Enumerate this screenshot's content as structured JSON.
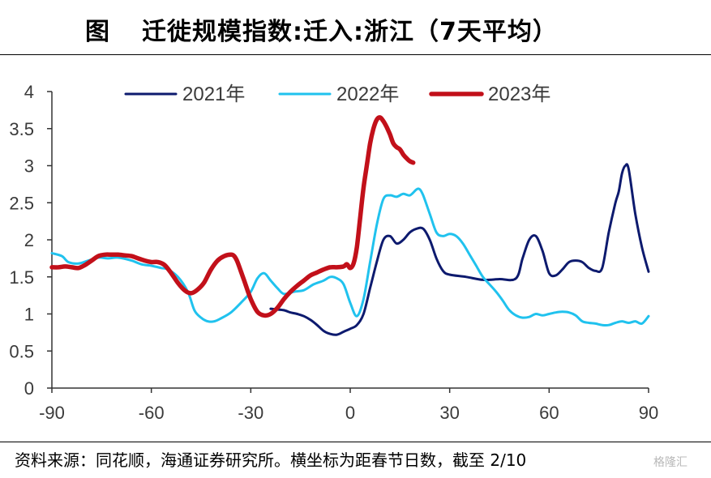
{
  "header": {
    "prefix": "图",
    "title": "迁徙规模指数:迁入:浙江（7天平均）"
  },
  "source": "资料来源：同花顺，海通证券研究所。横坐标为距春节日数，截至 2/10",
  "watermark": "格隆汇",
  "chart_data": {
    "type": "line",
    "title": "迁徙规模指数:迁入:浙江（7天平均）",
    "xlabel": "",
    "ylabel": "",
    "xlim": [
      -90,
      90
    ],
    "ylim": [
      0,
      4
    ],
    "x_ticks": [
      -90,
      -60,
      -30,
      0,
      30,
      60,
      90
    ],
    "x_tick_labels": [
      "-90",
      "-60",
      "-30",
      "0",
      "30",
      "60",
      "90"
    ],
    "y_ticks": [
      0,
      0.5,
      1,
      1.5,
      2,
      2.5,
      3,
      3.5,
      4
    ],
    "y_tick_labels": [
      "0",
      "0.5",
      "1",
      "1.5",
      "2",
      "2.5",
      "3",
      "3.5",
      "4"
    ],
    "grid": false,
    "legend_position": "top",
    "series": [
      {
        "name": "2021年",
        "color": "#0d1a6e",
        "x": [
          -24,
          -22,
          -20,
          -18,
          -16,
          -14,
          -12,
          -10,
          -8,
          -6,
          -4,
          -2,
          0,
          2,
          4,
          6,
          8,
          10,
          12,
          14,
          16,
          18,
          20,
          22,
          24,
          26,
          28,
          30,
          35,
          40,
          45,
          50,
          52,
          54,
          56,
          58,
          60,
          62,
          64,
          66,
          68,
          70,
          72,
          74,
          76,
          78,
          80,
          81,
          82,
          83,
          84,
          86,
          88,
          90
        ],
        "y": [
          1.07,
          1.06,
          1.05,
          1.02,
          1.0,
          0.97,
          0.92,
          0.85,
          0.77,
          0.73,
          0.72,
          0.76,
          0.8,
          0.85,
          1.0,
          1.35,
          1.7,
          2.0,
          2.05,
          1.95,
          2.0,
          2.1,
          2.15,
          2.15,
          2.0,
          1.75,
          1.58,
          1.53,
          1.5,
          1.46,
          1.47,
          1.48,
          1.75,
          2.0,
          2.05,
          1.85,
          1.55,
          1.52,
          1.6,
          1.7,
          1.72,
          1.7,
          1.62,
          1.58,
          1.62,
          2.1,
          2.5,
          2.65,
          2.9,
          3.0,
          2.95,
          2.35,
          1.9,
          1.57
        ]
      },
      {
        "name": "2022年",
        "color": "#20c2ee",
        "x": [
          -90,
          -87,
          -85,
          -82,
          -79,
          -76,
          -73,
          -70,
          -66,
          -63,
          -60,
          -57,
          -55,
          -52,
          -49,
          -47,
          -45,
          -43,
          -41,
          -39,
          -36,
          -33,
          -30,
          -28,
          -26,
          -24,
          -22,
          -20,
          -17,
          -14,
          -11,
          -8,
          -6,
          -4,
          -2,
          0,
          2,
          4,
          6,
          8,
          10,
          12,
          14,
          16,
          18,
          20,
          21,
          22,
          24,
          26,
          28,
          30,
          32,
          34,
          36,
          38,
          40,
          42,
          44,
          46,
          48,
          50,
          52,
          54,
          56,
          58,
          60,
          62,
          64,
          66,
          68,
          70,
          72,
          74,
          76,
          78,
          80,
          82,
          84,
          86,
          88,
          90
        ],
        "y": [
          1.82,
          1.78,
          1.7,
          1.68,
          1.72,
          1.76,
          1.75,
          1.76,
          1.72,
          1.67,
          1.65,
          1.62,
          1.6,
          1.5,
          1.3,
          1.05,
          0.95,
          0.9,
          0.9,
          0.94,
          1.02,
          1.15,
          1.3,
          1.48,
          1.55,
          1.45,
          1.35,
          1.27,
          1.3,
          1.32,
          1.4,
          1.45,
          1.5,
          1.48,
          1.4,
          1.15,
          0.97,
          1.2,
          1.7,
          2.2,
          2.55,
          2.6,
          2.58,
          2.62,
          2.6,
          2.68,
          2.68,
          2.6,
          2.35,
          2.1,
          2.05,
          2.08,
          2.05,
          1.95,
          1.8,
          1.65,
          1.5,
          1.4,
          1.3,
          1.18,
          1.05,
          0.98,
          0.95,
          0.96,
          1.0,
          0.98,
          1.0,
          1.02,
          1.03,
          1.02,
          0.98,
          0.9,
          0.88,
          0.87,
          0.85,
          0.85,
          0.88,
          0.9,
          0.88,
          0.9,
          0.87,
          0.97
        ]
      },
      {
        "name": "2023年",
        "color": "#c2101a",
        "x": [
          -90,
          -88,
          -86,
          -84,
          -82,
          -80,
          -78,
          -76,
          -74,
          -72,
          -70,
          -68,
          -66,
          -64,
          -62,
          -60,
          -58,
          -56,
          -54,
          -52,
          -50,
          -48,
          -46,
          -44,
          -42,
          -40,
          -38,
          -36,
          -35,
          -34,
          -32,
          -30,
          -28,
          -26,
          -24,
          -22,
          -20,
          -18,
          -16,
          -14,
          -12,
          -10,
          -8,
          -6,
          -4,
          -2,
          -1,
          0,
          1,
          2,
          3,
          4,
          5,
          6,
          7,
          8,
          9,
          10,
          11,
          12,
          13,
          14,
          15,
          16,
          17,
          18,
          19
        ],
        "y": [
          1.63,
          1.63,
          1.64,
          1.63,
          1.62,
          1.66,
          1.72,
          1.78,
          1.8,
          1.8,
          1.8,
          1.79,
          1.78,
          1.75,
          1.72,
          1.7,
          1.7,
          1.66,
          1.55,
          1.42,
          1.32,
          1.28,
          1.33,
          1.43,
          1.6,
          1.72,
          1.78,
          1.8,
          1.78,
          1.7,
          1.45,
          1.2,
          1.03,
          0.98,
          1.0,
          1.08,
          1.2,
          1.3,
          1.38,
          1.45,
          1.52,
          1.56,
          1.6,
          1.63,
          1.63,
          1.64,
          1.67,
          1.62,
          1.68,
          1.9,
          2.3,
          2.7,
          3.0,
          3.3,
          3.5,
          3.62,
          3.65,
          3.6,
          3.52,
          3.42,
          3.3,
          3.25,
          3.22,
          3.15,
          3.1,
          3.06,
          3.04
        ]
      }
    ]
  }
}
